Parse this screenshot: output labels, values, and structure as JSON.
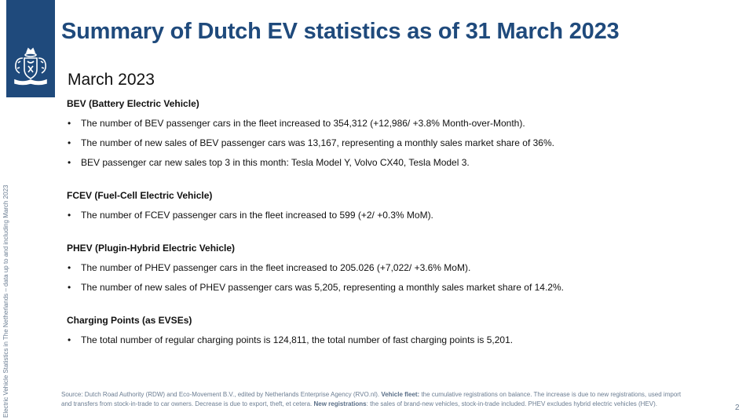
{
  "title": "Summary of Dutch EV statistics as of 31 March 2023",
  "side_note": "Electric Vehicle Statistics in The Netherlands – data up to and including March 2023",
  "subtitle": "March 2023",
  "sections": [
    {
      "heading": "BEV (Battery Electric Vehicle)",
      "bullets": [
        "The number of BEV passenger cars in the fleet increased to 354,312 (+12,986/ +3.8% Month-over-Month).",
        "The number of new sales of BEV passenger cars was 13,167, representing a monthly sales market share of 36%.",
        "BEV passenger car new sales top 3 in this month: Tesla Model Y, Volvo CX40, Tesla Model 3."
      ]
    },
    {
      "heading": "FCEV (Fuel-Cell Electric Vehicle)",
      "bullets": [
        "The number of FCEV passenger cars in the fleet increased to 599 (+2/ +0.3% MoM)."
      ]
    },
    {
      "heading": "PHEV (Plugin-Hybrid Electric Vehicle)",
      "bullets": [
        "The number of PHEV passenger cars in the fleet increased to 205.026 (+7,022/ +3.6% MoM).",
        "The number of new sales of PHEV passenger cars was 5,205, representing a monthly sales market share of 14.2%."
      ]
    },
    {
      "heading": "Charging Points (as EVSEs)",
      "bullets": [
        "The total number of regular charging points is 124,811, the total number of fast charging points is 5,201."
      ]
    }
  ],
  "footer": {
    "source": "Source: Dutch Road Authority (RDW) and Eco-Movement B.V., edited by Netherlands Enterprise Agency (RVO.nl). ",
    "fleet_label": "Vehicle fleet:",
    "fleet_text": " the cumulative registrations on balance. The increase is due to new registrations, used import and transfers from stock-in-trade to car owners. Decrease is due to export, theft, et cetera. ",
    "reg_label": "New registrations",
    "reg_text": ": the sales of brand-new vehicles, stock-in-trade included. PHEV excludes hybrid electric vehicles (HEV)."
  },
  "page_number": "2",
  "colors": {
    "brand_blue": "#1f4a7c",
    "muted_text": "#6b7d92"
  },
  "logo_icon": "dutch-government-coat-of-arms"
}
